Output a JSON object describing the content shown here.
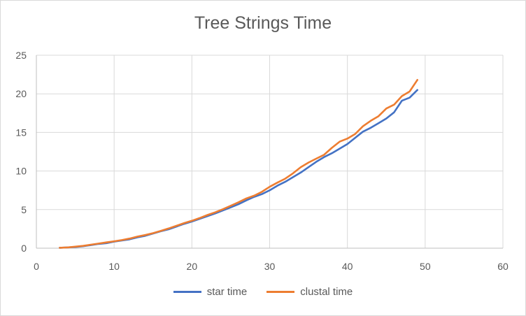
{
  "chart_data": {
    "type": "line",
    "title": "Tree Strings Time",
    "xlabel": "",
    "ylabel": "",
    "xlim": [
      0,
      60
    ],
    "ylim": [
      0,
      25
    ],
    "x_ticks": [
      0,
      10,
      20,
      30,
      40,
      50,
      60
    ],
    "y_ticks": [
      0,
      5,
      10,
      15,
      20,
      25
    ],
    "grid": true,
    "legend_position": "bottom",
    "x": [
      3,
      4,
      5,
      6,
      7,
      8,
      9,
      10,
      11,
      12,
      13,
      14,
      15,
      16,
      17,
      18,
      19,
      20,
      21,
      22,
      23,
      24,
      25,
      26,
      27,
      28,
      29,
      30,
      31,
      32,
      33,
      34,
      35,
      36,
      37,
      38,
      39,
      40,
      41,
      42,
      43,
      44,
      45,
      46,
      47,
      48,
      49
    ],
    "series": [
      {
        "name": "star time",
        "color": "#4472c4",
        "values": [
          0.05,
          0.1,
          0.15,
          0.25,
          0.4,
          0.55,
          0.65,
          0.85,
          1.0,
          1.15,
          1.4,
          1.6,
          1.9,
          2.2,
          2.45,
          2.8,
          3.15,
          3.45,
          3.8,
          4.15,
          4.5,
          4.9,
          5.3,
          5.7,
          6.2,
          6.65,
          7.0,
          7.5,
          8.1,
          8.6,
          9.2,
          9.8,
          10.5,
          11.2,
          11.8,
          12.3,
          12.9,
          13.5,
          14.3,
          15.1,
          15.6,
          16.2,
          16.8,
          17.6,
          19.1,
          19.5,
          20.5
        ]
      },
      {
        "name": "clustal time",
        "color": "#ed7d31",
        "values": [
          0.05,
          0.1,
          0.2,
          0.3,
          0.45,
          0.6,
          0.75,
          0.9,
          1.05,
          1.25,
          1.5,
          1.7,
          1.95,
          2.25,
          2.55,
          2.9,
          3.25,
          3.55,
          3.9,
          4.3,
          4.65,
          5.05,
          5.5,
          5.95,
          6.45,
          6.8,
          7.3,
          7.95,
          8.5,
          9.0,
          9.7,
          10.5,
          11.1,
          11.6,
          12.1,
          13.0,
          13.8,
          14.2,
          14.8,
          15.8,
          16.5,
          17.1,
          18.1,
          18.6,
          19.7,
          20.3,
          21.8
        ]
      }
    ]
  }
}
